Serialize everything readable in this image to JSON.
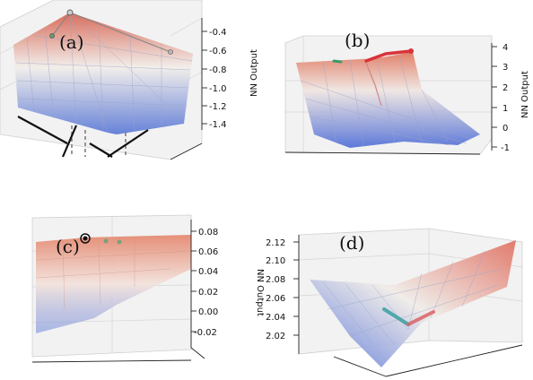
{
  "panels": [
    {
      "label": "(a)",
      "ylabel": "NN Output",
      "ticks": [
        "-0.4",
        "-0.6",
        "-0.8",
        "-1.0",
        "-1.2",
        "-1.4"
      ]
    },
    {
      "label": "(b)",
      "ylabel": "NN Output",
      "ticks": [
        "4",
        "3",
        "2",
        "1",
        "0",
        "-1"
      ]
    },
    {
      "label": "(c)",
      "ylabel": "",
      "ticks": [
        "0.08",
        "0.06",
        "0.04",
        "0.02",
        "0.00",
        "-0.02"
      ]
    },
    {
      "label": "(d)",
      "ylabel": "NN Output",
      "ticks": [
        "2.12",
        "2.10",
        "2.08",
        "2.06",
        "2.04",
        "2.02"
      ]
    }
  ],
  "colors": {
    "high": "#d6604d",
    "mid": "#f2f0ee",
    "low": "#5a78d6",
    "path_red": "#d9333a",
    "path_green": "#3a9a6a",
    "path_teal": "#3aa0a0"
  },
  "chart_data": [
    {
      "type": "surface",
      "label": "(a)",
      "zlabel": "NN Output",
      "zlim": [
        -1.45,
        -0.35
      ],
      "zticks": [
        -0.4,
        -0.6,
        -0.8,
        -1.0,
        -1.2,
        -1.4
      ]
    },
    {
      "type": "surface",
      "label": "(b)",
      "zlabel": "NN Output",
      "zlim": [
        -1.3,
        4.1
      ],
      "zticks": [
        4,
        3,
        2,
        1,
        0,
        -1
      ]
    },
    {
      "type": "surface",
      "label": "(c)",
      "zlabel": "",
      "zlim": [
        -0.025,
        0.085
      ],
      "zticks": [
        0.08,
        0.06,
        0.04,
        0.02,
        0.0,
        -0.02
      ]
    },
    {
      "type": "surface",
      "label": "(d)",
      "zlabel": "NN Output",
      "zlim": [
        2.01,
        2.125
      ],
      "zticks": [
        2.12,
        2.1,
        2.08,
        2.06,
        2.04,
        2.02
      ]
    }
  ]
}
